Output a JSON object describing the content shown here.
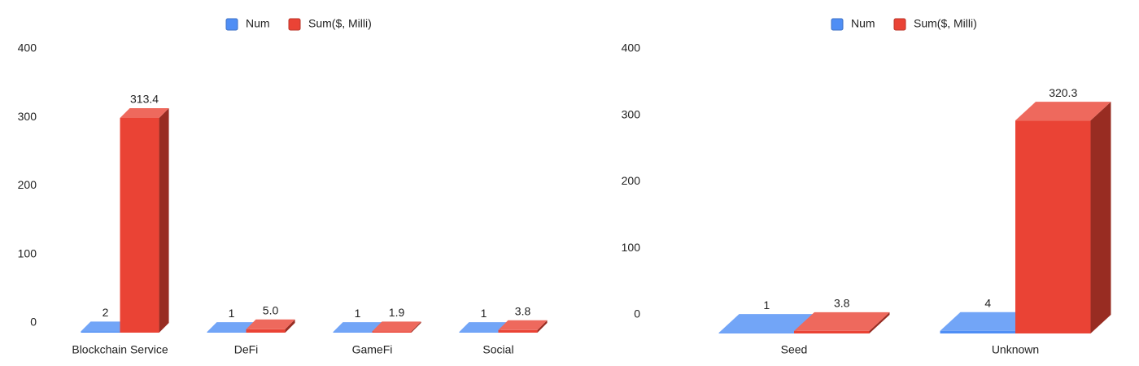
{
  "chart_data": [
    {
      "type": "bar3d",
      "categories": [
        "Blockchain Service",
        "DeFi",
        "GameFi",
        "Social"
      ],
      "series": [
        {
          "name": "Num",
          "color": "#4f8ef5",
          "values": [
            2,
            1,
            1,
            1
          ]
        },
        {
          "name": "Sum($, Milli)",
          "color": "#ea4335",
          "values": [
            313.4,
            5.0,
            1.9,
            3.8
          ],
          "value_labels": [
            "313.4",
            "5.0",
            "1.9",
            "3.8"
          ]
        }
      ],
      "ylim": [
        0,
        400
      ],
      "yticks": [
        0,
        100,
        200,
        300,
        400
      ],
      "legend": "top"
    },
    {
      "type": "bar3d",
      "categories": [
        "Seed",
        "Unknown"
      ],
      "series": [
        {
          "name": "Num",
          "color": "#4f8ef5",
          "values": [
            1,
            4
          ]
        },
        {
          "name": "Sum($, Milli)",
          "color": "#ea4335",
          "values": [
            3.8,
            320.3
          ],
          "value_labels": [
            "3.8",
            "320.3"
          ]
        }
      ],
      "ylim": [
        0,
        400
      ],
      "yticks": [
        0,
        100,
        200,
        300,
        400
      ],
      "legend": "top"
    }
  ]
}
